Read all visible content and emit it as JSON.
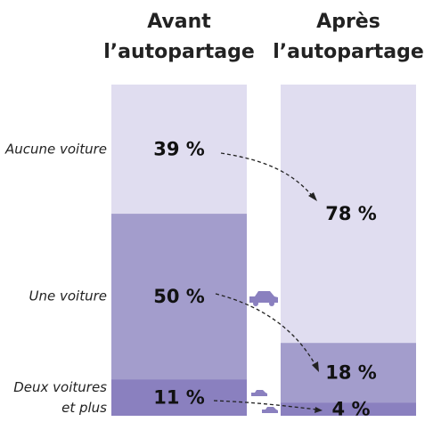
{
  "chart_data": {
    "type": "bar",
    "stacked": true,
    "categories": [
      "Avant l’autopartage",
      "Après l’autopartage"
    ],
    "series": [
      {
        "name": "Aucune voiture",
        "color": "#e0ddf0",
        "values": [
          39,
          78
        ],
        "value_labels": [
          "39 %",
          "78 %"
        ]
      },
      {
        "name": "Une voiture",
        "color": "#a39dcc",
        "values": [
          50,
          18
        ],
        "value_labels": [
          "50 %",
          "18 %"
        ]
      },
      {
        "name": "Deux voitures et plus",
        "color": "#8a80bf",
        "values": [
          11,
          4
        ],
        "value_labels": [
          "11 %",
          "4 %"
        ]
      }
    ]
  }
}
